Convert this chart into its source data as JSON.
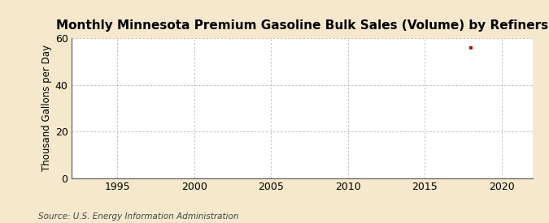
{
  "title": "Monthly Minnesota Premium Gasoline Bulk Sales (Volume) by Refiners",
  "ylabel": "Thousand Gallons per Day",
  "source_text": "Source: U.S. Energy Information Administration",
  "background_color": "#f5e8cc",
  "plot_background_color": "#ffffff",
  "data_point_x": 2018,
  "data_point_y": 55.7,
  "data_point_color": "#aa1111",
  "xlim": [
    1992,
    2022
  ],
  "ylim": [
    0,
    60
  ],
  "xticks": [
    1995,
    2000,
    2005,
    2010,
    2015,
    2020
  ],
  "yticks": [
    0,
    20,
    40,
    60
  ],
  "grid_color": "#aaaaaa",
  "title_fontsize": 11,
  "label_fontsize": 8.5,
  "tick_fontsize": 9,
  "source_fontsize": 7.5
}
